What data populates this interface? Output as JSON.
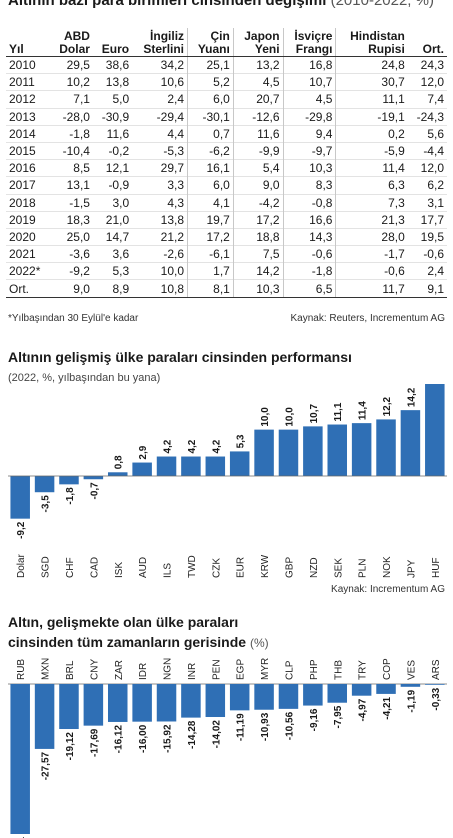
{
  "table1": {
    "title": "Altının bazı para birimleri cinsinden değişimi",
    "subtitle": "(2010-2022, %)",
    "headers": [
      "Yıl",
      "ABD Dolar",
      "Euro",
      "İngiliz Sterlini",
      "Çin Yuanı",
      "Japon Yeni",
      "İsviçre Frangı",
      "Hindistan Rupisi",
      "Ort."
    ],
    "rows": [
      [
        "2010",
        "29,5",
        "38,6",
        "34,2",
        "25,1",
        "13,2",
        "16,8",
        "24,8",
        "24,3"
      ],
      [
        "2011",
        "10,2",
        "13,8",
        "10,6",
        "5,2",
        "4,5",
        "10,7",
        "30,7",
        "12,0"
      ],
      [
        "2012",
        "7,1",
        "5,0",
        "2,4",
        "6,0",
        "20,7",
        "4,5",
        "11,1",
        "7,4"
      ],
      [
        "2013",
        "-28,0",
        "-30,9",
        "-29,4",
        "-30,1",
        "-12,6",
        "-29,8",
        "-19,1",
        "-24,3"
      ],
      [
        "2014",
        "-1,8",
        "11,6",
        "4,4",
        "0,7",
        "11,6",
        "9,4",
        "0,2",
        "5,6"
      ],
      [
        "2015",
        "-10,4",
        "-0,2",
        "-5,3",
        "-6,2",
        "-9,9",
        "-9,7",
        "-5,9",
        "-4,4"
      ],
      [
        "2016",
        "8,5",
        "12,1",
        "29,7",
        "16,1",
        "5,4",
        "10,3",
        "11,4",
        "12,0"
      ],
      [
        "2017",
        "13,1",
        "-0,9",
        "3,3",
        "6,0",
        "9,0",
        "8,3",
        "6,3",
        "6,2"
      ],
      [
        "2018",
        "-1,5",
        "3,0",
        "4,3",
        "4,1",
        "-4,2",
        "-0,8",
        "7,3",
        "3,1"
      ],
      [
        "2019",
        "18,3",
        "21,0",
        "13,8",
        "19,7",
        "17,2",
        "16,6",
        "21,3",
        "17,7"
      ],
      [
        "2020",
        "25,0",
        "14,7",
        "21,2",
        "17,2",
        "18,8",
        "14,3",
        "28,0",
        "19,5"
      ],
      [
        "2021",
        "-3,6",
        "3,6",
        "-2,6",
        "-6,1",
        "7,5",
        "-0,6",
        "-1,7",
        "-0,6"
      ],
      [
        "2022*",
        "-9,2",
        "5,3",
        "10,0",
        "1,7",
        "14,2",
        "-1,8",
        "-0,6",
        "2,4"
      ],
      [
        "Ort.",
        "9,0",
        "8,9",
        "10,8",
        "8,1",
        "10,3",
        "6,5",
        "11,7",
        "9,1"
      ]
    ],
    "footnote": "*Yılbaşından 30 Eylül'e kadar",
    "source": "Kaynak: Reuters, Incrementum AG"
  },
  "chart2_text": {
    "title": "Altının gelişmiş ülke paraları cinsinden performansı",
    "subtitle": "(2022, %, yılbaşından bu yana)",
    "source": "Kaynak: Incrementum AG"
  },
  "chart3_text": {
    "title_line1": "Altın, gelişmekte olan ülke paraları",
    "title_line2": "cinsinden tüm zamanların gerisinde",
    "unit": "(%)"
  },
  "chart_data": [
    {
      "type": "bar",
      "title": "Altının gelişmiş ülke paraları cinsinden performansı",
      "subtitle": "(2022, %, yılbaşından bu yana)",
      "categories": [
        "Dolar",
        "SGD",
        "CHF",
        "CAD",
        "ISK",
        "AUD",
        "ILS",
        "TWD",
        "CZK",
        "EUR",
        "KRW",
        "GBP",
        "NZD",
        "SEK",
        "PLN",
        "NOK",
        "JPY",
        "HUF"
      ],
      "values": [
        -9.2,
        -3.5,
        -1.8,
        -0.7,
        0.8,
        2.9,
        4.2,
        4.2,
        4.2,
        5.3,
        10.0,
        10.0,
        10.7,
        11.1,
        11.4,
        12.2,
        14.2,
        20.7
      ],
      "labels": [
        "-9,2",
        "-3,5",
        "-1,8",
        "-0,7",
        "0,8",
        "2,9",
        "4,2",
        "4,2",
        "4,2",
        "5,3",
        "10,0",
        "10,0",
        "10,7",
        "11,1",
        "11,4",
        "12,2",
        "14,2",
        "20,7"
      ],
      "ylim": [
        -10,
        21
      ],
      "color": "#2f6fb5",
      "grid": false,
      "source": "Kaynak: Incrementum AG"
    },
    {
      "type": "bar",
      "title": "Altın, gelişmekte olan ülke paraları cinsinden tüm zamanların gerisinde (%)",
      "categories": [
        "RUB",
        "MXN",
        "BRL",
        "CNY",
        "ZAR",
        "IDR",
        "NGN",
        "INR",
        "PEN",
        "EGP",
        "MYR",
        "CLP",
        "PHP",
        "THB",
        "TRY",
        "COP",
        "VES",
        "ARS"
      ],
      "values": [
        -63.71,
        -27.57,
        -19.12,
        -17.69,
        -16.12,
        -16.0,
        -15.92,
        -14.28,
        -14.02,
        -11.19,
        -10.93,
        -10.56,
        -9.16,
        -7.95,
        -4.97,
        -4.21,
        -1.19,
        -0.33
      ],
      "labels": [
        "-63,71",
        "-27,57",
        "-19,12",
        "-17,69",
        "-16,12",
        "-16,00",
        "-15,92",
        "-14,28",
        "-14,02",
        "-11,19",
        "-10,93",
        "-10,56",
        "-9,16",
        "-7,95",
        "-4,97",
        "-4,21",
        "-1,19",
        "-0,33"
      ],
      "ylim": [
        -64,
        0
      ],
      "color": "#2f6fb5",
      "grid": false
    }
  ]
}
